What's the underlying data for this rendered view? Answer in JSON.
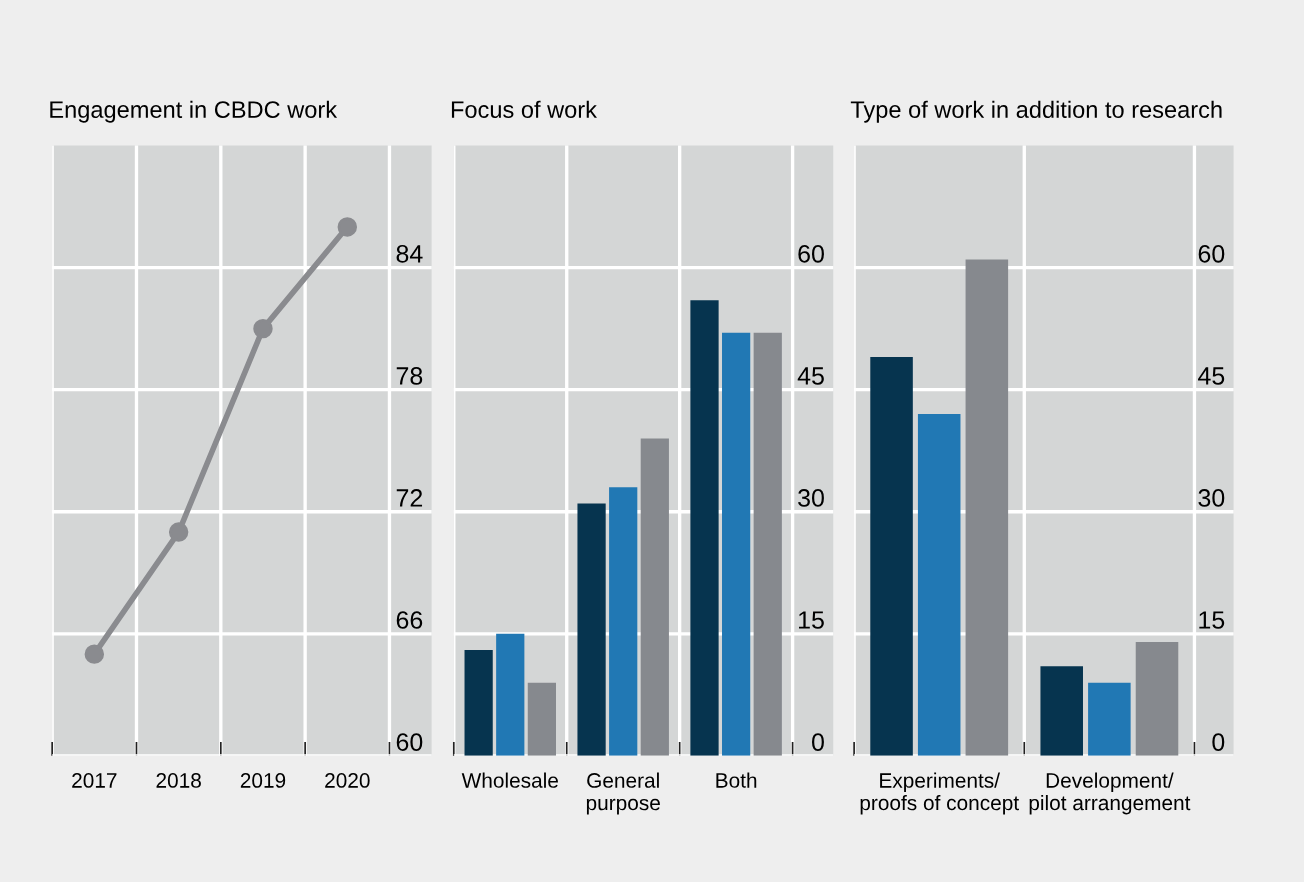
{
  "chart_data": [
    {
      "type": "line",
      "title": "Engagement in CBDC work",
      "categories": [
        "2017",
        "2018",
        "2019",
        "2020"
      ],
      "series": [
        {
          "color": "#8a8b8f",
          "values": [
            65,
            71,
            81,
            86
          ]
        }
      ],
      "marker": "circle",
      "ylim": [
        60,
        90
      ],
      "yticks": [
        60,
        66,
        72,
        78,
        84
      ],
      "grid": true
    },
    {
      "type": "bar",
      "title": "Focus of work",
      "categories": [
        "Wholesale",
        "General\npurpose",
        "Both"
      ],
      "series": [
        {
          "color": "#06344f",
          "values": [
            13,
            31,
            56
          ]
        },
        {
          "color": "#2178b4",
          "values": [
            15,
            33,
            52
          ]
        },
        {
          "color": "#86898e",
          "values": [
            9,
            39,
            52
          ]
        }
      ],
      "ylim": [
        0,
        75
      ],
      "yticks": [
        0,
        15,
        30,
        45,
        60
      ],
      "grid": true
    },
    {
      "type": "bar",
      "title": "Type of work in addition to research",
      "categories": [
        "Experiments/\nproofs of concept",
        "Development/\npilot arrangement"
      ],
      "series": [
        {
          "color": "#06344f",
          "values": [
            49,
            11
          ]
        },
        {
          "color": "#2178b4",
          "values": [
            42,
            9
          ]
        },
        {
          "color": "#86898e",
          "values": [
            61,
            14
          ]
        }
      ],
      "ylim": [
        0,
        75
      ],
      "yticks": [
        0,
        15,
        30,
        45,
        60
      ],
      "grid": true
    }
  ]
}
